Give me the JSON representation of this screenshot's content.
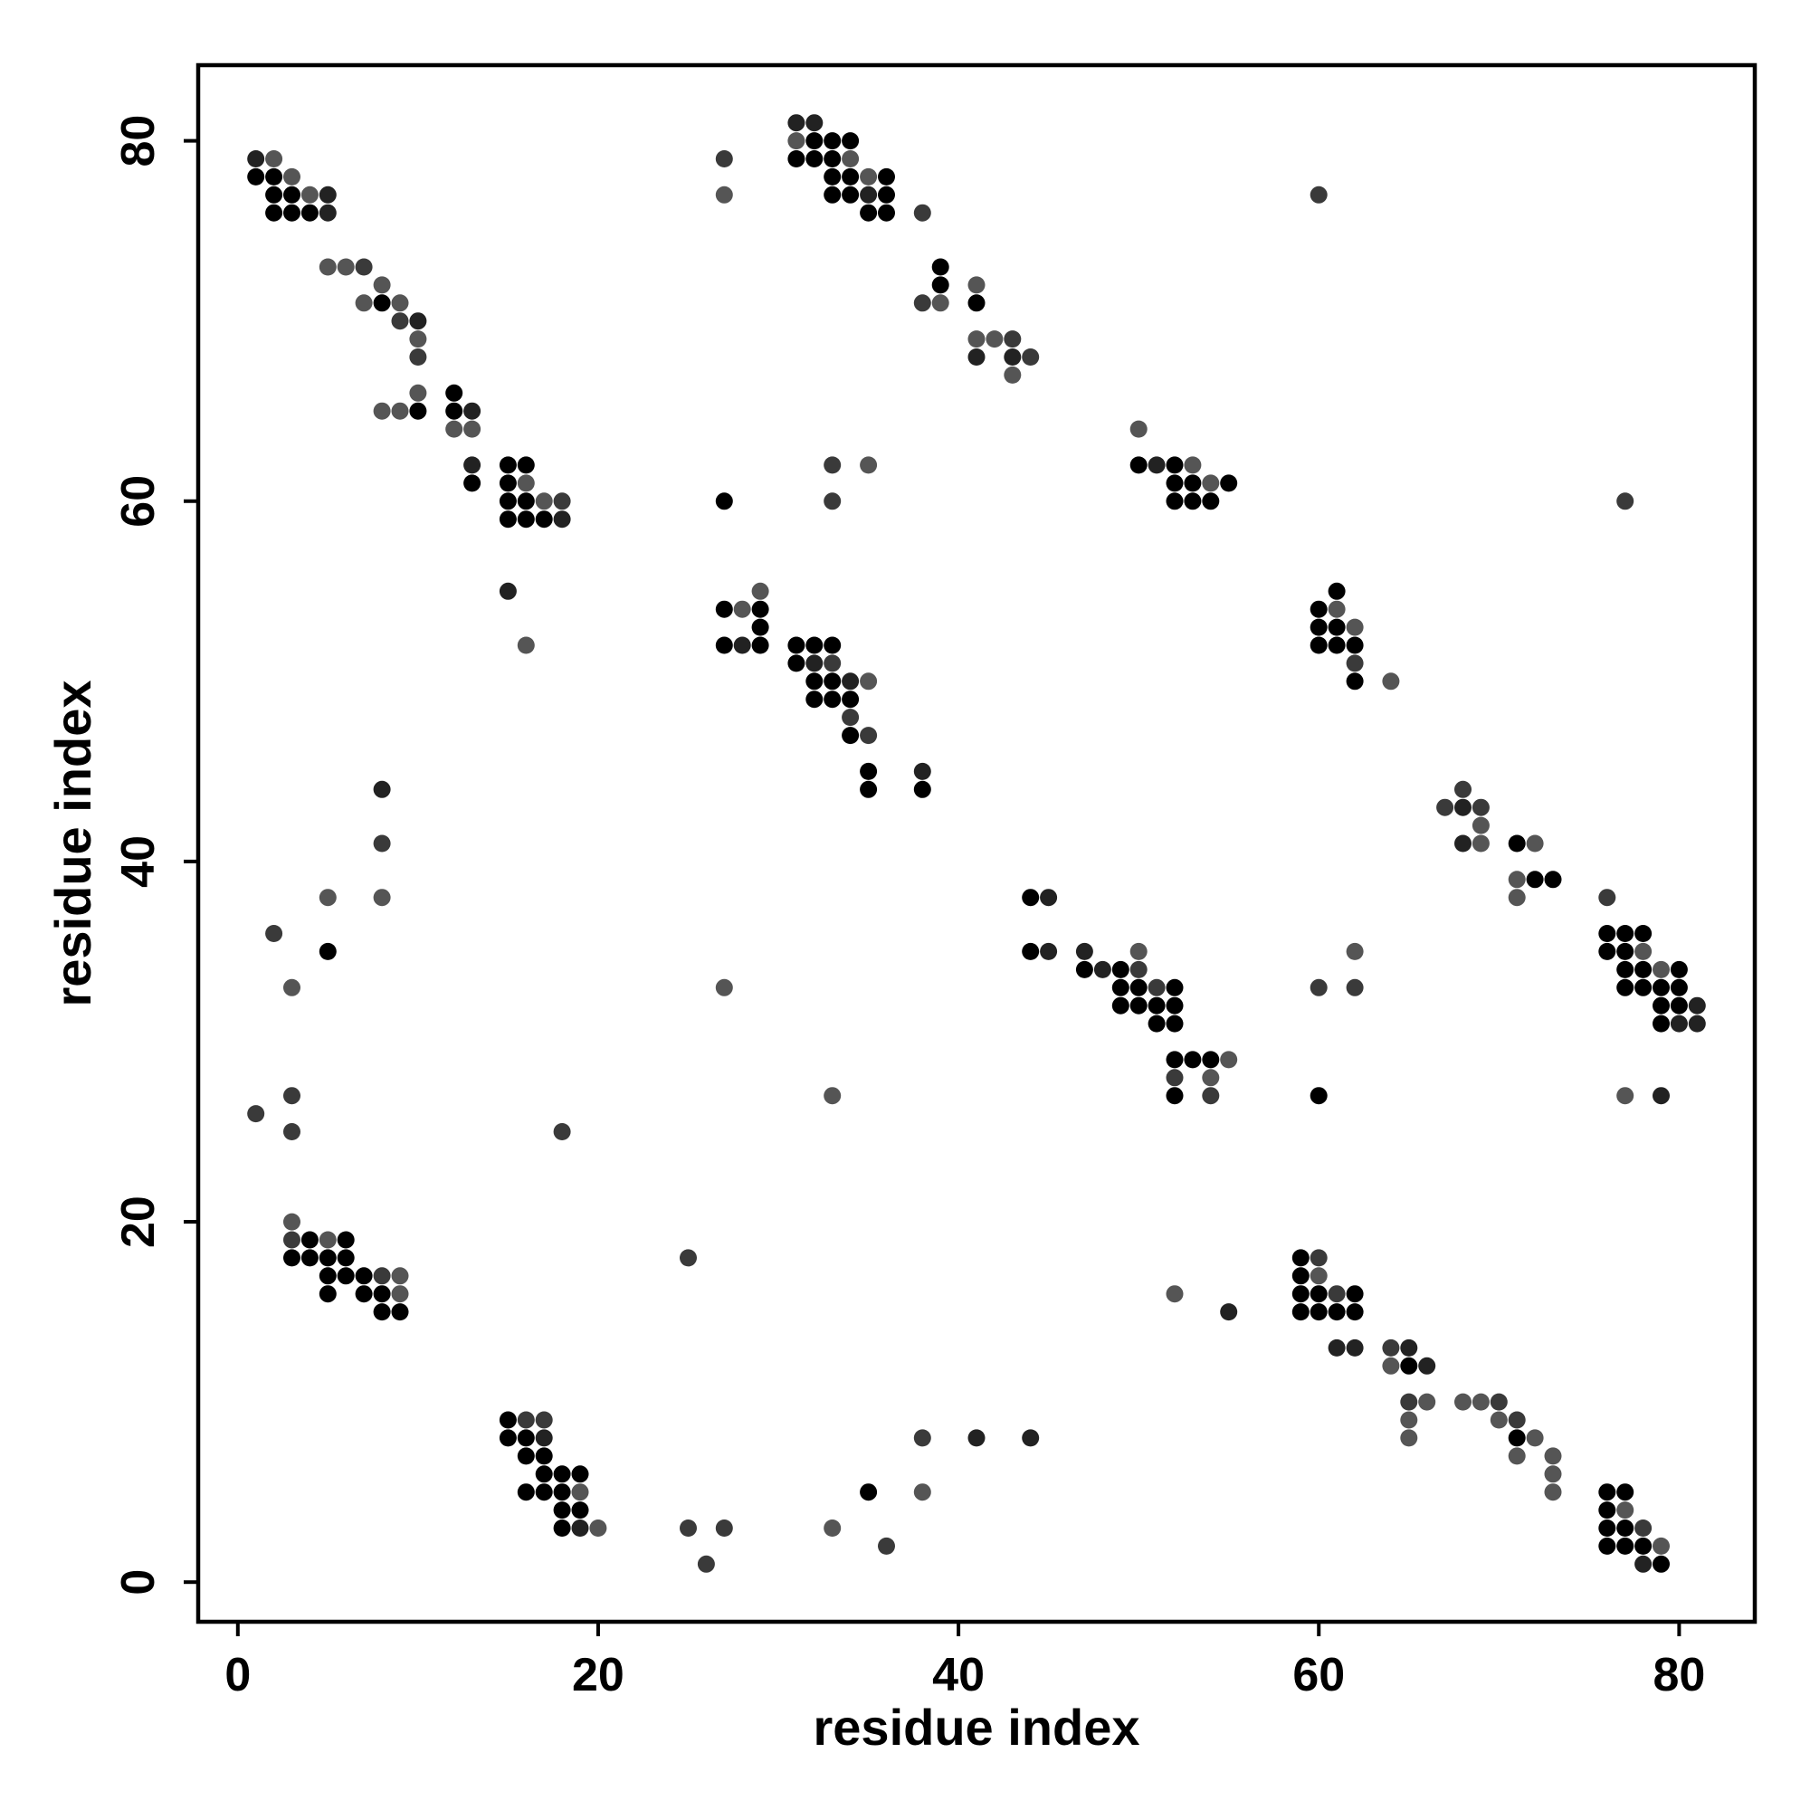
{
  "chart_data": {
    "type": "scatter",
    "title": "",
    "xlabel": "residue index",
    "ylabel": "residue index",
    "xlim": [
      -2.2,
      84.2
    ],
    "ylim": [
      -2.2,
      84.2
    ],
    "xticks": [
      0,
      20,
      40,
      60,
      80
    ],
    "yticks": [
      0,
      20,
      40,
      60,
      80
    ],
    "grid": false,
    "legend": "none",
    "point_colors": {
      "1": "#000000",
      "2": "#222222",
      "3": "#3a3a3a",
      "4": "#555555"
    },
    "points": [
      [
        1,
        79,
        2
      ],
      [
        2,
        79,
        4
      ],
      [
        1,
        78,
        1
      ],
      [
        2,
        78,
        1
      ],
      [
        3,
        78,
        4
      ],
      [
        2,
        77,
        1
      ],
      [
        3,
        77,
        1
      ],
      [
        4,
        77,
        4
      ],
      [
        5,
        77,
        2
      ],
      [
        2,
        76,
        1
      ],
      [
        3,
        76,
        1
      ],
      [
        4,
        76,
        1
      ],
      [
        5,
        76,
        2
      ],
      [
        5,
        73,
        4
      ],
      [
        6,
        73,
        4
      ],
      [
        7,
        73,
        3
      ],
      [
        8,
        72,
        4
      ],
      [
        7,
        71,
        4
      ],
      [
        8,
        71,
        1
      ],
      [
        9,
        71,
        4
      ],
      [
        9,
        70,
        3
      ],
      [
        10,
        70,
        2
      ],
      [
        10,
        69,
        4
      ],
      [
        10,
        68,
        3
      ],
      [
        8,
        65,
        4
      ],
      [
        9,
        65,
        4
      ],
      [
        10,
        65,
        1
      ],
      [
        10,
        66,
        4
      ],
      [
        12,
        66,
        1
      ],
      [
        12,
        65,
        1
      ],
      [
        13,
        65,
        2
      ],
      [
        12,
        64,
        4
      ],
      [
        13,
        64,
        4
      ],
      [
        13,
        62,
        2
      ],
      [
        13,
        61,
        1
      ],
      [
        15,
        62,
        1
      ],
      [
        16,
        62,
        1
      ],
      [
        15,
        61,
        1
      ],
      [
        16,
        61,
        4
      ],
      [
        15,
        60,
        1
      ],
      [
        16,
        60,
        1
      ],
      [
        17,
        60,
        4
      ],
      [
        18,
        60,
        3
      ],
      [
        15,
        59,
        1
      ],
      [
        16,
        59,
        1
      ],
      [
        17,
        59,
        1
      ],
      [
        18,
        59,
        2
      ],
      [
        15,
        55,
        2
      ],
      [
        16,
        52,
        4
      ],
      [
        27,
        79,
        3
      ],
      [
        27,
        77,
        4
      ],
      [
        31,
        81,
        2
      ],
      [
        32,
        81,
        2
      ],
      [
        31,
        80,
        4
      ],
      [
        32,
        80,
        1
      ],
      [
        33,
        80,
        1
      ],
      [
        34,
        80,
        1
      ],
      [
        31,
        79,
        1
      ],
      [
        32,
        79,
        1
      ],
      [
        33,
        79,
        1
      ],
      [
        34,
        79,
        4
      ],
      [
        33,
        78,
        1
      ],
      [
        34,
        78,
        1
      ],
      [
        35,
        78,
        4
      ],
      [
        36,
        78,
        1
      ],
      [
        33,
        77,
        1
      ],
      [
        34,
        77,
        1
      ],
      [
        35,
        77,
        2
      ],
      [
        36,
        77,
        1
      ],
      [
        35,
        76,
        1
      ],
      [
        36,
        76,
        1
      ],
      [
        38,
        76,
        3
      ],
      [
        39,
        73,
        1
      ],
      [
        39,
        72,
        1
      ],
      [
        41,
        72,
        4
      ],
      [
        38,
        71,
        3
      ],
      [
        39,
        71,
        4
      ],
      [
        41,
        71,
        1
      ],
      [
        41,
        69,
        4
      ],
      [
        42,
        69,
        4
      ],
      [
        43,
        69,
        3
      ],
      [
        41,
        68,
        2
      ],
      [
        43,
        68,
        2
      ],
      [
        44,
        68,
        3
      ],
      [
        43,
        67,
        4
      ],
      [
        33,
        62,
        3
      ],
      [
        35,
        62,
        4
      ],
      [
        27,
        60,
        1
      ],
      [
        33,
        60,
        3
      ],
      [
        50,
        64,
        4
      ],
      [
        50,
        62,
        1
      ],
      [
        51,
        62,
        2
      ],
      [
        52,
        62,
        1
      ],
      [
        53,
        62,
        4
      ],
      [
        52,
        61,
        1
      ],
      [
        53,
        61,
        1
      ],
      [
        54,
        61,
        4
      ],
      [
        55,
        61,
        1
      ],
      [
        52,
        60,
        1
      ],
      [
        53,
        60,
        1
      ],
      [
        54,
        60,
        1
      ],
      [
        60,
        77,
        3
      ],
      [
        77,
        60,
        3
      ],
      [
        29,
        55,
        4
      ],
      [
        27,
        54,
        1
      ],
      [
        28,
        54,
        4
      ],
      [
        29,
        54,
        1
      ],
      [
        29,
        53,
        1
      ],
      [
        27,
        52,
        1
      ],
      [
        28,
        52,
        2
      ],
      [
        29,
        52,
        1
      ],
      [
        31,
        52,
        1
      ],
      [
        32,
        52,
        1
      ],
      [
        33,
        52,
        1
      ],
      [
        31,
        51,
        1
      ],
      [
        32,
        51,
        2
      ],
      [
        33,
        51,
        3
      ],
      [
        32,
        50,
        1
      ],
      [
        33,
        50,
        1
      ],
      [
        34,
        50,
        2
      ],
      [
        35,
        50,
        4
      ],
      [
        32,
        49,
        1
      ],
      [
        33,
        49,
        1
      ],
      [
        34,
        49,
        1
      ],
      [
        34,
        48,
        3
      ],
      [
        34,
        47,
        1
      ],
      [
        35,
        47,
        3
      ],
      [
        35,
        45,
        1
      ],
      [
        38,
        45,
        2
      ],
      [
        35,
        44,
        1
      ],
      [
        38,
        44,
        1
      ],
      [
        61,
        55,
        1
      ],
      [
        60,
        54,
        1
      ],
      [
        61,
        54,
        4
      ],
      [
        60,
        53,
        1
      ],
      [
        61,
        53,
        1
      ],
      [
        62,
        53,
        4
      ],
      [
        60,
        52,
        1
      ],
      [
        61,
        52,
        1
      ],
      [
        62,
        52,
        1
      ],
      [
        62,
        51,
        3
      ],
      [
        62,
        50,
        1
      ],
      [
        64,
        50,
        4
      ],
      [
        8,
        44,
        2
      ],
      [
        8,
        41,
        3
      ],
      [
        8,
        38,
        4
      ],
      [
        5,
        38,
        4
      ],
      [
        2,
        36,
        3
      ],
      [
        5,
        35,
        1
      ],
      [
        3,
        33,
        4
      ],
      [
        3,
        27,
        3
      ],
      [
        1,
        26,
        3
      ],
      [
        3,
        25,
        3
      ],
      [
        18,
        25,
        3
      ],
      [
        27,
        33,
        4
      ],
      [
        33,
        27,
        4
      ],
      [
        44,
        38,
        1
      ],
      [
        45,
        38,
        2
      ],
      [
        44,
        35,
        1
      ],
      [
        45,
        35,
        2
      ],
      [
        47,
        35,
        2
      ],
      [
        50,
        35,
        4
      ],
      [
        47,
        34,
        1
      ],
      [
        48,
        34,
        2
      ],
      [
        49,
        34,
        1
      ],
      [
        50,
        34,
        3
      ],
      [
        49,
        33,
        1
      ],
      [
        50,
        33,
        1
      ],
      [
        51,
        33,
        3
      ],
      [
        52,
        33,
        1
      ],
      [
        49,
        32,
        1
      ],
      [
        50,
        32,
        1
      ],
      [
        51,
        32,
        1
      ],
      [
        52,
        32,
        1
      ],
      [
        51,
        31,
        1
      ],
      [
        52,
        31,
        1
      ],
      [
        52,
        29,
        1
      ],
      [
        53,
        29,
        1
      ],
      [
        54,
        29,
        1
      ],
      [
        55,
        29,
        4
      ],
      [
        52,
        28,
        3
      ],
      [
        54,
        28,
        4
      ],
      [
        52,
        27,
        1
      ],
      [
        54,
        27,
        3
      ],
      [
        68,
        44,
        3
      ],
      [
        67,
        43,
        3
      ],
      [
        68,
        43,
        2
      ],
      [
        69,
        43,
        3
      ],
      [
        69,
        42,
        4
      ],
      [
        68,
        41,
        2
      ],
      [
        69,
        41,
        4
      ],
      [
        71,
        41,
        1
      ],
      [
        72,
        41,
        4
      ],
      [
        71,
        39,
        4
      ],
      [
        72,
        39,
        1
      ],
      [
        73,
        39,
        1
      ],
      [
        71,
        38,
        4
      ],
      [
        76,
        38,
        3
      ],
      [
        76,
        36,
        1
      ],
      [
        77,
        36,
        1
      ],
      [
        78,
        36,
        1
      ],
      [
        76,
        35,
        1
      ],
      [
        77,
        35,
        1
      ],
      [
        78,
        35,
        4
      ],
      [
        77,
        34,
        1
      ],
      [
        78,
        34,
        1
      ],
      [
        79,
        34,
        4
      ],
      [
        80,
        34,
        1
      ],
      [
        77,
        33,
        1
      ],
      [
        78,
        33,
        1
      ],
      [
        79,
        33,
        1
      ],
      [
        80,
        33,
        1
      ],
      [
        79,
        32,
        1
      ],
      [
        80,
        32,
        1
      ],
      [
        81,
        32,
        2
      ],
      [
        79,
        31,
        1
      ],
      [
        80,
        31,
        2
      ],
      [
        81,
        31,
        2
      ],
      [
        60,
        33,
        3
      ],
      [
        62,
        35,
        4
      ],
      [
        62,
        33,
        3
      ],
      [
        60,
        27,
        1
      ],
      [
        77,
        27,
        4
      ],
      [
        79,
        27,
        2
      ],
      [
        3,
        20,
        4
      ],
      [
        3,
        19,
        3
      ],
      [
        4,
        19,
        1
      ],
      [
        5,
        19,
        4
      ],
      [
        6,
        19,
        1
      ],
      [
        3,
        18,
        1
      ],
      [
        4,
        18,
        1
      ],
      [
        5,
        18,
        1
      ],
      [
        6,
        18,
        1
      ],
      [
        5,
        17,
        1
      ],
      [
        6,
        17,
        1
      ],
      [
        7,
        17,
        1
      ],
      [
        8,
        17,
        3
      ],
      [
        9,
        17,
        4
      ],
      [
        5,
        16,
        1
      ],
      [
        7,
        16,
        1
      ],
      [
        8,
        16,
        1
      ],
      [
        9,
        16,
        4
      ],
      [
        8,
        15,
        1
      ],
      [
        9,
        15,
        1
      ],
      [
        25,
        18,
        3
      ],
      [
        52,
        16,
        4
      ],
      [
        55,
        15,
        2
      ],
      [
        59,
        18,
        1
      ],
      [
        60,
        18,
        3
      ],
      [
        59,
        17,
        1
      ],
      [
        60,
        17,
        4
      ],
      [
        59,
        16,
        1
      ],
      [
        60,
        16,
        1
      ],
      [
        61,
        16,
        3
      ],
      [
        62,
        16,
        1
      ],
      [
        59,
        15,
        1
      ],
      [
        60,
        15,
        1
      ],
      [
        61,
        15,
        1
      ],
      [
        62,
        15,
        1
      ],
      [
        61,
        13,
        2
      ],
      [
        62,
        13,
        2
      ],
      [
        64,
        13,
        3
      ],
      [
        65,
        13,
        2
      ],
      [
        64,
        12,
        4
      ],
      [
        65,
        12,
        1
      ],
      [
        66,
        12,
        2
      ],
      [
        65,
        10,
        3
      ],
      [
        66,
        10,
        4
      ],
      [
        65,
        9,
        4
      ],
      [
        65,
        8,
        4
      ],
      [
        68,
        10,
        4
      ],
      [
        69,
        10,
        4
      ],
      [
        70,
        10,
        3
      ],
      [
        70,
        9,
        4
      ],
      [
        71,
        9,
        3
      ],
      [
        71,
        8,
        1
      ],
      [
        72,
        8,
        4
      ],
      [
        71,
        7,
        4
      ],
      [
        73,
        7,
        4
      ],
      [
        73,
        6,
        4
      ],
      [
        73,
        5,
        4
      ],
      [
        15,
        9,
        1
      ],
      [
        16,
        9,
        3
      ],
      [
        17,
        9,
        3
      ],
      [
        15,
        8,
        1
      ],
      [
        16,
        8,
        1
      ],
      [
        17,
        8,
        2
      ],
      [
        16,
        7,
        1
      ],
      [
        17,
        7,
        1
      ],
      [
        17,
        6,
        1
      ],
      [
        18,
        6,
        1
      ],
      [
        19,
        6,
        1
      ],
      [
        16,
        5,
        1
      ],
      [
        17,
        5,
        1
      ],
      [
        18,
        5,
        1
      ],
      [
        19,
        5,
        4
      ],
      [
        18,
        4,
        1
      ],
      [
        19,
        4,
        1
      ],
      [
        18,
        3,
        1
      ],
      [
        19,
        3,
        2
      ],
      [
        20,
        3,
        4
      ],
      [
        25,
        3,
        3
      ],
      [
        26,
        1,
        3
      ],
      [
        27,
        3,
        3
      ],
      [
        33,
        3,
        4
      ],
      [
        35,
        5,
        1
      ],
      [
        36,
        2,
        3
      ],
      [
        38,
        8,
        3
      ],
      [
        38,
        5,
        4
      ],
      [
        41,
        8,
        2
      ],
      [
        44,
        8,
        2
      ],
      [
        76,
        5,
        1
      ],
      [
        77,
        5,
        1
      ],
      [
        76,
        4,
        1
      ],
      [
        77,
        4,
        4
      ],
      [
        76,
        3,
        1
      ],
      [
        77,
        3,
        1
      ],
      [
        78,
        3,
        3
      ],
      [
        76,
        2,
        1
      ],
      [
        77,
        2,
        1
      ],
      [
        78,
        2,
        1
      ],
      [
        79,
        2,
        4
      ],
      [
        78,
        1,
        2
      ],
      [
        79,
        1,
        1
      ]
    ]
  }
}
